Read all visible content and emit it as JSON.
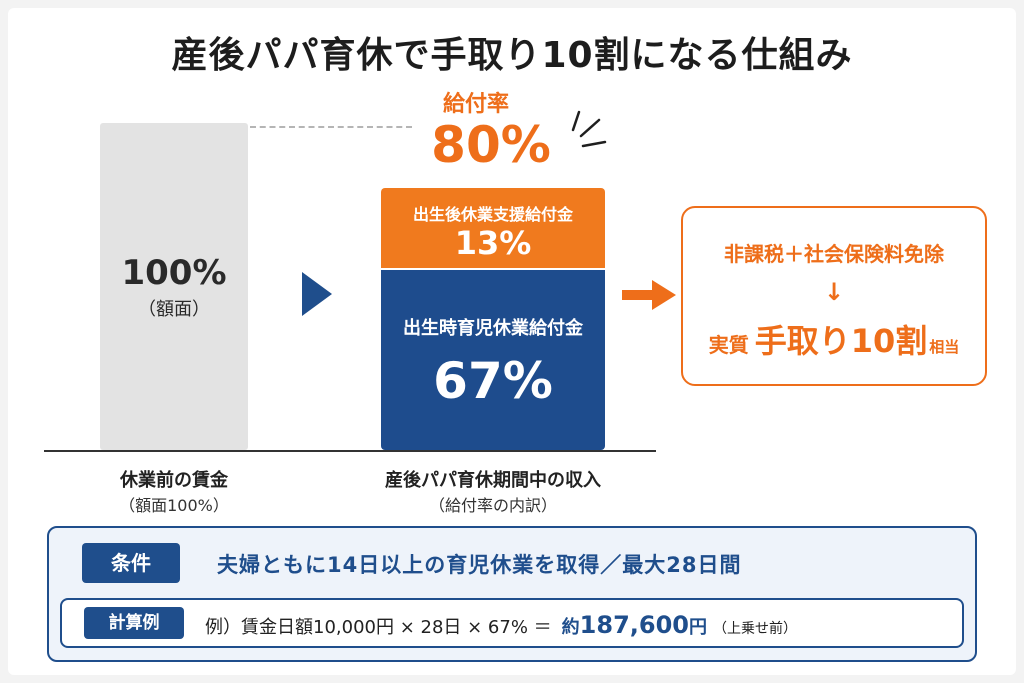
{
  "title": "産後パパ育休で手取り10割になる仕組み",
  "rate": {
    "label": "給付率",
    "value": "80%"
  },
  "bars": {
    "before": {
      "value": "100%",
      "sub": "（額面）",
      "label": "休業前の賃金",
      "label_sub": "（額面100%）"
    },
    "after": {
      "label": "産後パパ育休期間中の収入",
      "label_sub": "（給付率の内訳）",
      "segments": [
        {
          "name": "出生後休業支援給付金",
          "value": "13%",
          "percent": 13,
          "color": "#f07a1e"
        },
        {
          "name": "出生時育児休業給付金",
          "value": "67%",
          "percent": 67,
          "color": "#1e4c8d"
        }
      ]
    }
  },
  "result": {
    "top": "非課税＋社会保険料免除",
    "arrow": "↓",
    "prefix": "実質",
    "main": "手取り10割",
    "suffix": "相当"
  },
  "condition": {
    "tag": "条件",
    "text": "夫婦ともに14日以上の育児休業を取得／最大28日間"
  },
  "calculation": {
    "tag": "計算例",
    "formula": "例）賃金日額10,000円 × 28日 × 67% ＝",
    "approx": "約",
    "amount": "187,600",
    "yen": "円",
    "note": "（上乗せ前）"
  },
  "colors": {
    "orange": "#ee6e1a",
    "navy": "#1f4e8c",
    "gray_bar": "#e3e3e3"
  }
}
